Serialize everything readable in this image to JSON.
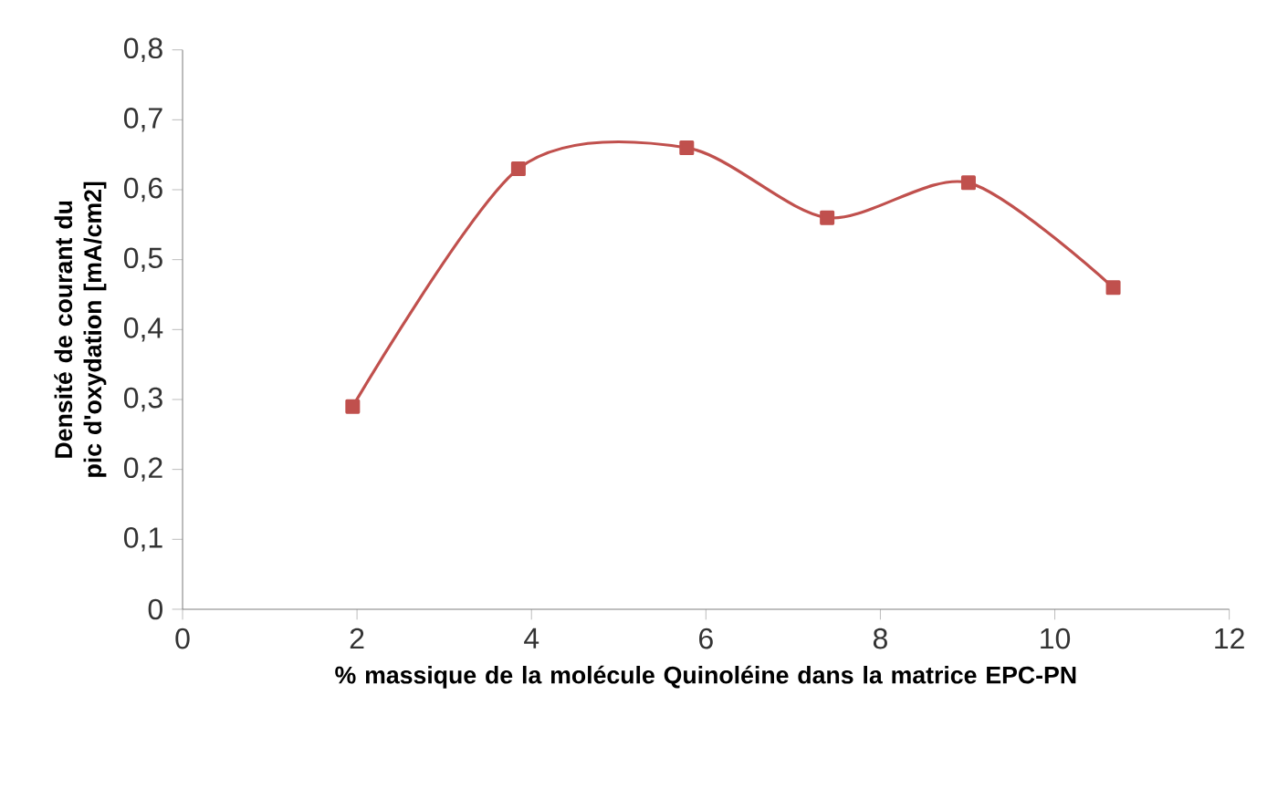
{
  "chart_data": {
    "type": "line",
    "xlabel": "% massique de la molécule Quinoléine dans la matrice EPC-PN",
    "ylabel": "Densité de courant du pic d'oxydation [mA/cm2]",
    "x": [
      1.95,
      3.85,
      5.78,
      7.39,
      9.01,
      10.67
    ],
    "series": [
      {
        "color": "#c0504d",
        "values": [
          0.29,
          0.63,
          0.66,
          0.56,
          0.61,
          0.46
        ]
      }
    ],
    "xlim": [
      0,
      12
    ],
    "xticks": [
      0,
      2,
      4,
      6,
      8,
      10,
      12
    ],
    "ylim": [
      0,
      0.8
    ],
    "yticks": [
      0,
      {
        "value": 0.1,
        "label": "0,1"
      },
      {
        "value": 0.2,
        "label": "0,2"
      },
      {
        "value": 0.3,
        "label": "0,3"
      },
      {
        "value": 0.4,
        "label": "0,4"
      },
      {
        "value": 0.5,
        "label": "0,5"
      },
      {
        "value": 0.6,
        "label": "0,6"
      },
      {
        "value": 0.7,
        "label": "0,7"
      },
      {
        "value": 0.8,
        "label": "0,8"
      }
    ],
    "marker": "square",
    "line_style": "solid",
    "grid": false
  }
}
